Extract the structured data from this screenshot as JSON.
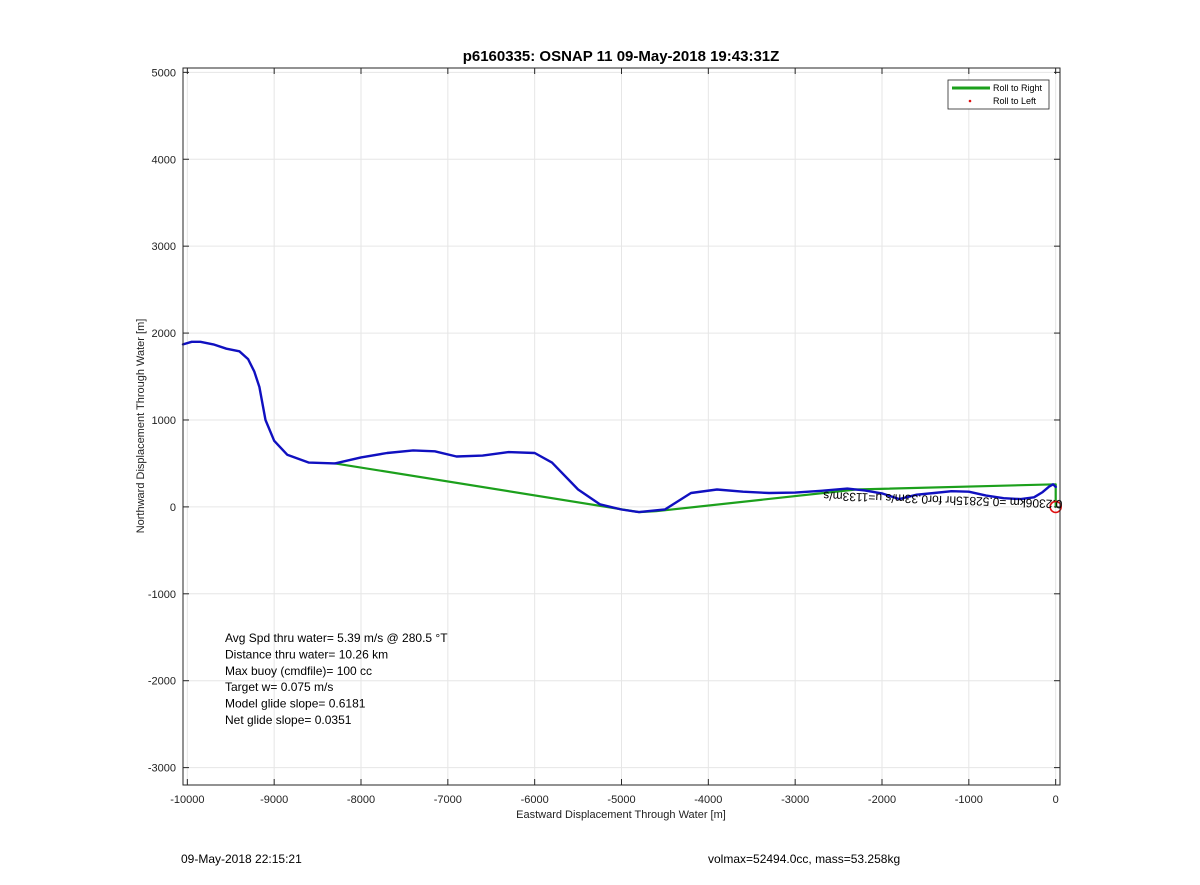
{
  "chart_data": {
    "type": "line",
    "title": "p6160335: OSNAP 11 09-May-2018 19:43:31Z",
    "xlabel": "Eastward Displacement Through Water [m]",
    "ylabel": "Northward Displacement Through Water [m]",
    "xlim": [
      -10050,
      50
    ],
    "ylim": [
      -3200,
      5050
    ],
    "xticks": [
      -10000,
      -9000,
      -8000,
      -7000,
      -6000,
      -5000,
      -4000,
      -3000,
      -2000,
      -1000,
      0
    ],
    "yticks": [
      -3000,
      -2000,
      -1000,
      0,
      1000,
      2000,
      3000,
      4000,
      5000
    ],
    "grid": true,
    "legend_position": "top-right",
    "series": [
      {
        "name": "Roll to Right",
        "color": "#1ca01c",
        "x": [
          -8300,
          -4800,
          -4600,
          -2300,
          0,
          0
        ],
        "y": [
          500,
          -60,
          -50,
          200,
          260,
          0
        ]
      },
      {
        "name": "Roll to Left",
        "color": "#e01010",
        "x": [],
        "y": []
      },
      {
        "color": "#1010c0",
        "x": [
          -10050,
          -9950,
          -9850,
          -9700,
          -9550,
          -9400,
          -9300,
          -9230,
          -9170,
          -9100,
          -9000,
          -8850,
          -8600,
          -8300,
          -8000,
          -7700,
          -7400,
          -7150,
          -6900,
          -6600,
          -6300,
          -6000,
          -5800,
          -5500,
          -5250,
          -5000,
          -4800,
          -4500,
          -4200,
          -3900,
          -3600,
          -3300,
          -3000,
          -2700,
          -2400,
          -2200,
          -2000,
          -1800,
          -1600,
          -1400,
          -1200,
          -1000,
          -800,
          -600,
          -400,
          -250,
          -150,
          -80,
          -30,
          0
        ],
        "y": [
          1870,
          1900,
          1900,
          1870,
          1820,
          1790,
          1700,
          1560,
          1380,
          1000,
          760,
          600,
          510,
          500,
          570,
          620,
          650,
          640,
          580,
          590,
          630,
          620,
          510,
          200,
          30,
          -30,
          -60,
          -30,
          160,
          200,
          175,
          160,
          165,
          185,
          210,
          190,
          155,
          90,
          140,
          160,
          180,
          175,
          130,
          100,
          90,
          110,
          170,
          230,
          260,
          230
        ]
      }
    ],
    "annotations": [
      "Avg Spd thru water=  5.39 m/s @ 280.5 °T",
      "Distance thru water= 10.26 km",
      "Max buoy (cmdfile)= 100 cc",
      "Target w= 0.075 m/s",
      "Model glide slope= 0.6181",
      "Net glide slope= 0.0351"
    ],
    "inverted_text": "0.2306km  =0.52815hr  for0.33m/s  u=1133m/s",
    "end_marker": {
      "x": 0,
      "y": 0,
      "color": "#e01010"
    }
  },
  "footer": {
    "date": "09-May-2018 22:15:21",
    "info": "volmax=52494.0cc, mass=53.258kg"
  }
}
